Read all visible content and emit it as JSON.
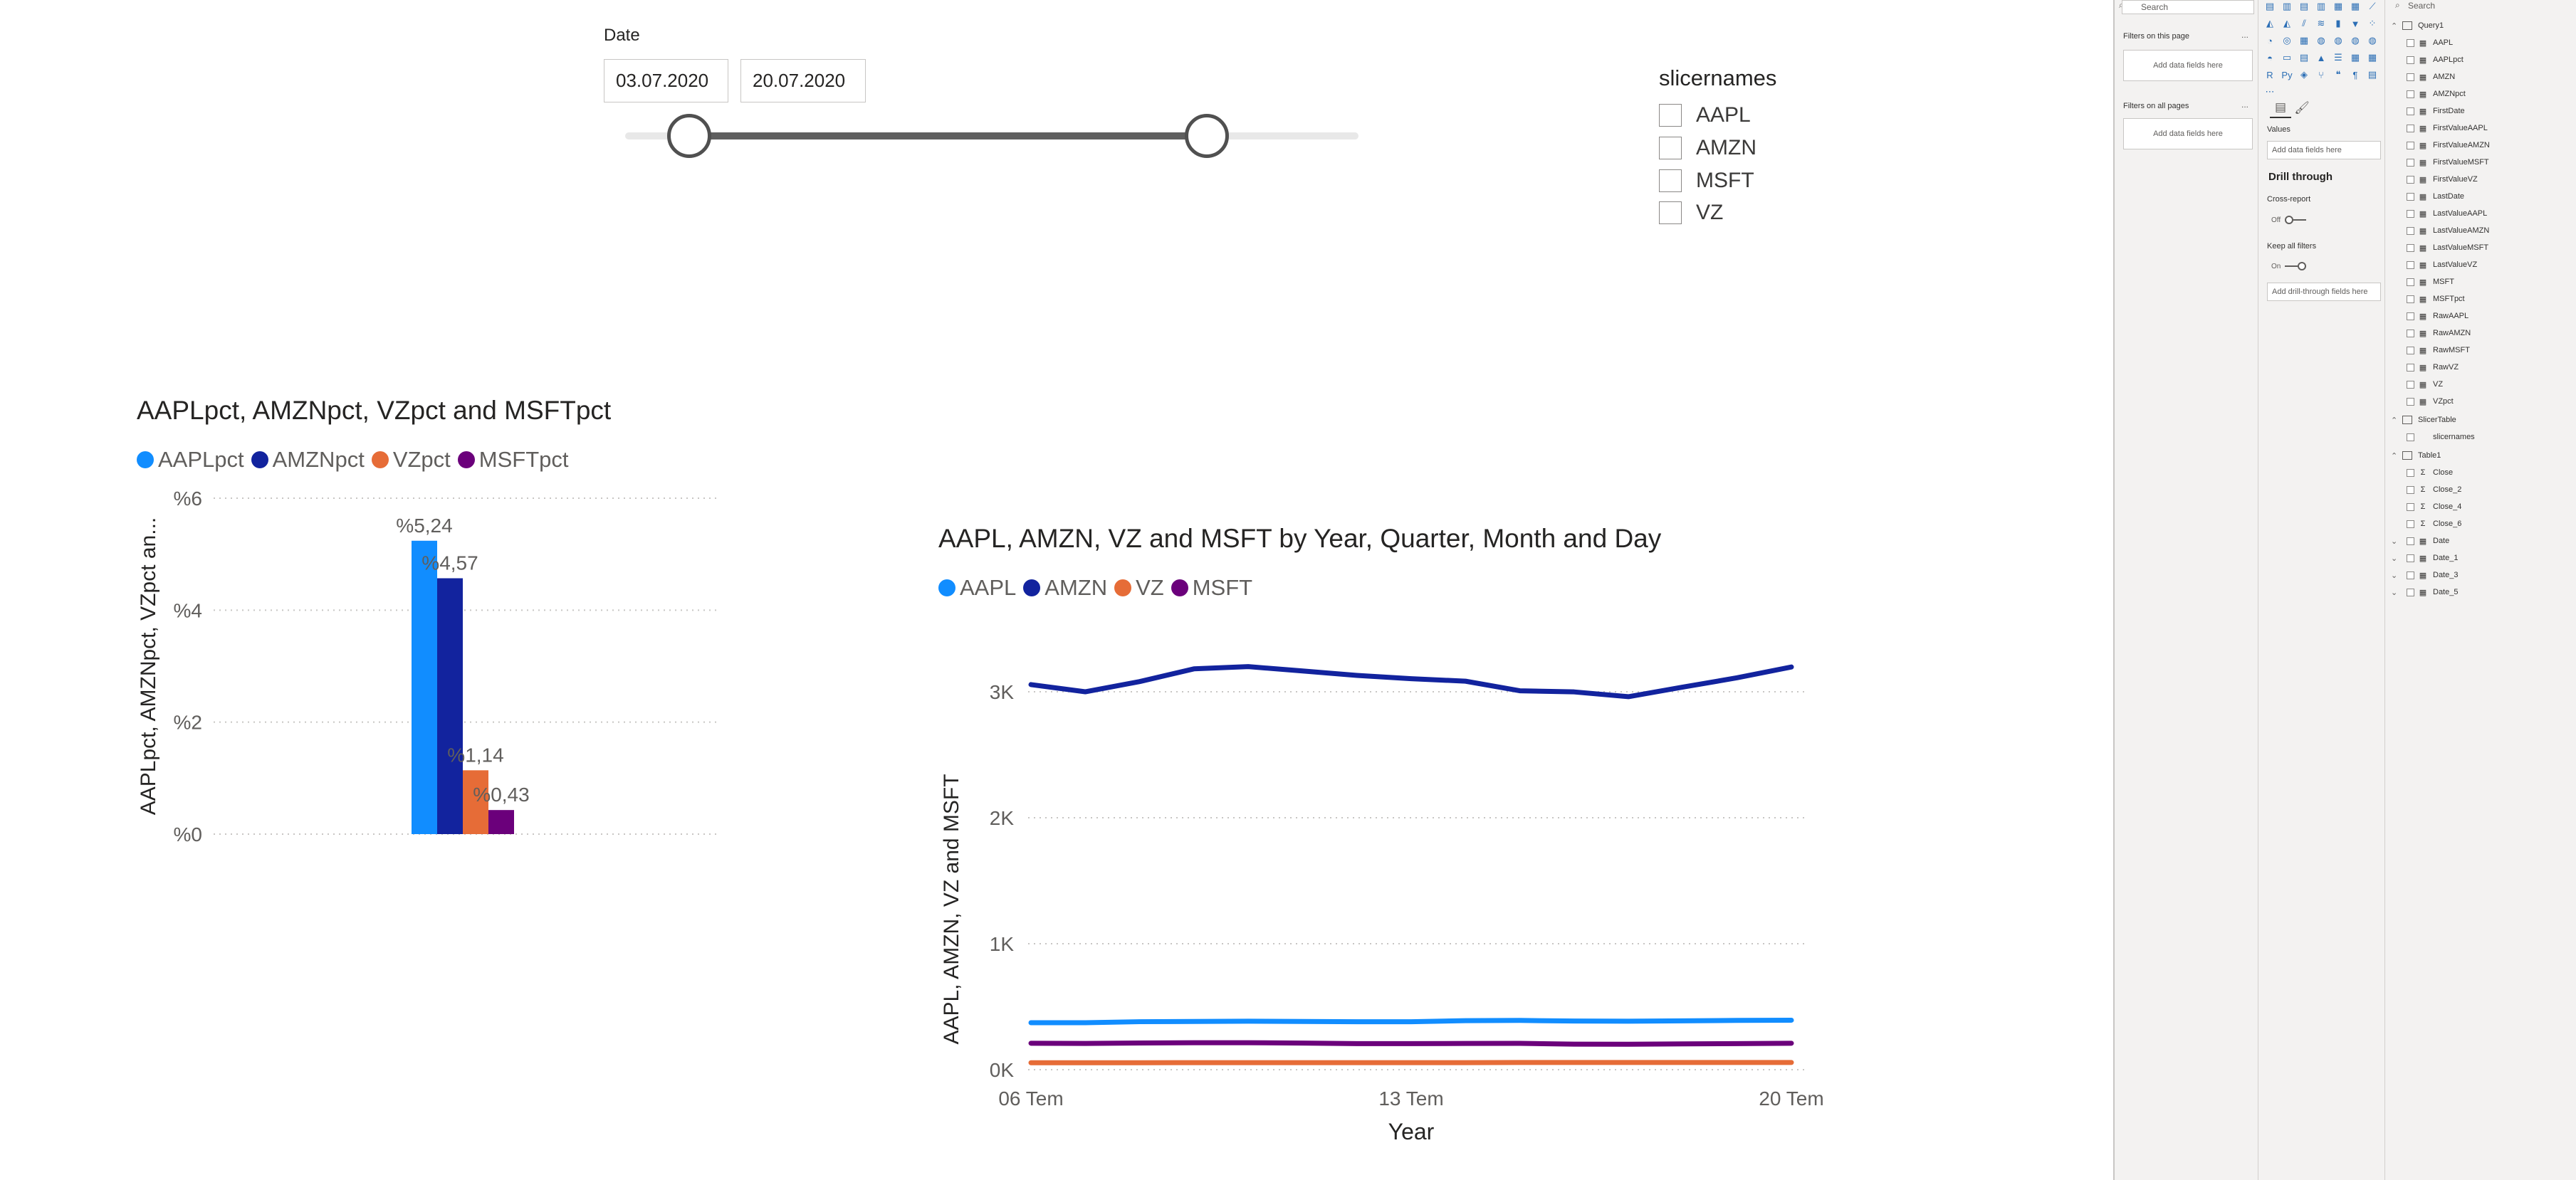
{
  "date_slicer": {
    "title": "Date",
    "start": "03.07.2020",
    "end": "20.07.2020"
  },
  "slicer": {
    "title": "slicernames",
    "items": [
      "AAPL",
      "AMZN",
      "MSFT",
      "VZ"
    ]
  },
  "bar_visual": {
    "title": "AAPLpct, AMZNpct, VZpct and MSFTpct",
    "legend": [
      {
        "name": "AAPLpct",
        "color": "#118DFF"
      },
      {
        "name": "AMZNpct",
        "color": "#12239E"
      },
      {
        "name": "VZpct",
        "color": "#E66C37"
      },
      {
        "name": "MSFTpct",
        "color": "#6B007B"
      }
    ],
    "ylabel": "AAPLpct, AMZNpct, VZpct an..."
  },
  "line_visual": {
    "title": "AAPL, AMZN, VZ and MSFT by Year, Quarter, Month and Day",
    "legend": [
      {
        "name": "AAPL",
        "color": "#118DFF"
      },
      {
        "name": "AMZN",
        "color": "#12239E"
      },
      {
        "name": "VZ",
        "color": "#E66C37"
      },
      {
        "name": "MSFT",
        "color": "#6B007B"
      }
    ],
    "ylabel": "AAPL, AMZN, VZ and MSFT",
    "xlabel": "Year"
  },
  "chart_data": [
    {
      "type": "bar",
      "title": "AAPLpct, AMZNpct, VZpct and MSFTpct",
      "ylabel": "AAPLpct, AMZNpct, VZpct an...",
      "ylim": [
        0,
        6
      ],
      "yticks": [
        "%0",
        "%2",
        "%4",
        "%6"
      ],
      "grid": true,
      "legend_position": "top-left",
      "series": [
        {
          "name": "AAPLpct",
          "value": 5.24,
          "label": "%5,24",
          "color": "#118DFF"
        },
        {
          "name": "AMZNpct",
          "value": 4.57,
          "label": "%4,57",
          "color": "#12239E"
        },
        {
          "name": "VZpct",
          "value": 1.14,
          "label": "%1,14",
          "color": "#E66C37"
        },
        {
          "name": "MSFTpct",
          "value": 0.43,
          "label": "%0,43",
          "color": "#6B007B"
        }
      ]
    },
    {
      "type": "line",
      "title": "AAPL, AMZN, VZ and MSFT by Year, Quarter, Month and Day",
      "xlabel": "Year",
      "ylabel": "AAPL, AMZN, VZ and MSFT",
      "ylim": [
        0,
        3000
      ],
      "yticks": [
        "0K",
        "1K",
        "2K",
        "3K"
      ],
      "xticks": [
        "06 Tem",
        "13 Tem",
        "20 Tem"
      ],
      "x": [
        "06 Tem",
        "07 Tem",
        "08 Tem",
        "09 Tem",
        "10 Tem",
        "11 Tem",
        "12 Tem",
        "13 Tem",
        "14 Tem",
        "15 Tem",
        "16 Tem",
        "17 Tem",
        "18 Tem",
        "19 Tem",
        "20 Tem"
      ],
      "grid": true,
      "legend_position": "top-left",
      "series": [
        {
          "name": "AAPL",
          "color": "#118DFF",
          "values": [
            373,
            373,
            381,
            383,
            385,
            383,
            381,
            381,
            389,
            391,
            386,
            385,
            388,
            391,
            393
          ]
        },
        {
          "name": "AMZN",
          "color": "#12239E",
          "values": [
            3057,
            3000,
            3081,
            3182,
            3200,
            3165,
            3130,
            3104,
            3084,
            3008,
            2999,
            2961,
            3037,
            3111,
            3197
          ]
        },
        {
          "name": "VZ",
          "color": "#E66C37",
          "values": [
            55,
            55,
            55,
            56,
            56,
            56,
            56,
            56,
            56,
            57,
            57,
            57,
            57,
            57,
            57
          ]
        },
        {
          "name": "MSFT",
          "color": "#6B007B",
          "values": [
            210,
            208,
            212,
            214,
            214,
            211,
            207,
            207,
            208,
            209,
            203,
            202,
            205,
            207,
            210
          ]
        }
      ]
    }
  ],
  "filters_pane": {
    "search_placeholder": "Search",
    "on_this_page": "Filters on this page",
    "on_all_pages": "Filters on all pages",
    "add_fields": "Add data fields here",
    "more": "..."
  },
  "viz_pane": {
    "icons": [
      "stacked-bar",
      "stacked-column",
      "clustered-bar",
      "clustered-column",
      "100pct-bar",
      "100pct-column",
      "line-chart",
      "area-chart",
      "stacked-area",
      "line-column",
      "ribbon",
      "waterfall",
      "funnel",
      "scatter",
      "pie",
      "donut",
      "treemap",
      "map",
      "filled-map",
      "shape-map",
      "azure-map",
      "gauge",
      "card",
      "multi-row-card",
      "kpi",
      "slicer",
      "table",
      "matrix",
      "r-visual",
      "python-visual",
      "key-influencers",
      "decomposition-tree",
      "qa",
      "narrative",
      "paginated",
      "more"
    ],
    "values_label": "Values",
    "values_well": "Add data fields here",
    "drillthrough_title": "Drill through",
    "cross_report_label": "Cross-report",
    "cross_report_value": "Off",
    "keep_filters_label": "Keep all filters",
    "keep_filters_value": "On",
    "drillthrough_well": "Add drill-through fields here"
  },
  "fields_pane": {
    "search_placeholder": "Search",
    "tables": [
      {
        "name": "Query1",
        "fields": [
          {
            "name": "AAPL",
            "kind": "measure"
          },
          {
            "name": "AAPLpct",
            "kind": "measure"
          },
          {
            "name": "AMZN",
            "kind": "measure"
          },
          {
            "name": "AMZNpct",
            "kind": "measure"
          },
          {
            "name": "FirstDate",
            "kind": "measure"
          },
          {
            "name": "FirstValueAAPL",
            "kind": "measure"
          },
          {
            "name": "FirstValueAMZN",
            "kind": "measure"
          },
          {
            "name": "FirstValueMSFT",
            "kind": "measure"
          },
          {
            "name": "FirstValueVZ",
            "kind": "measure"
          },
          {
            "name": "LastDate",
            "kind": "measure"
          },
          {
            "name": "LastValueAAPL",
            "kind": "measure"
          },
          {
            "name": "LastValueAMZN",
            "kind": "measure"
          },
          {
            "name": "LastValueMSFT",
            "kind": "measure"
          },
          {
            "name": "LastValueVZ",
            "kind": "measure"
          },
          {
            "name": "MSFT",
            "kind": "measure"
          },
          {
            "name": "MSFTpct",
            "kind": "measure"
          },
          {
            "name": "RawAAPL",
            "kind": "measure"
          },
          {
            "name": "RawAMZN",
            "kind": "measure"
          },
          {
            "name": "RawMSFT",
            "kind": "measure"
          },
          {
            "name": "RawVZ",
            "kind": "measure"
          },
          {
            "name": "VZ",
            "kind": "measure"
          },
          {
            "name": "VZpct",
            "kind": "measure"
          }
        ]
      },
      {
        "name": "SlicerTable",
        "fields": [
          {
            "name": "slicernames",
            "kind": "column"
          }
        ]
      },
      {
        "name": "Table1",
        "fields": [
          {
            "name": "Close",
            "kind": "sum"
          },
          {
            "name": "Close_2",
            "kind": "sum"
          },
          {
            "name": "Close_4",
            "kind": "sum"
          },
          {
            "name": "Close_6",
            "kind": "sum"
          },
          {
            "name": "Date",
            "kind": "date"
          },
          {
            "name": "Date_1",
            "kind": "date"
          },
          {
            "name": "Date_3",
            "kind": "date"
          },
          {
            "name": "Date_5",
            "kind": "date"
          }
        ]
      }
    ]
  }
}
